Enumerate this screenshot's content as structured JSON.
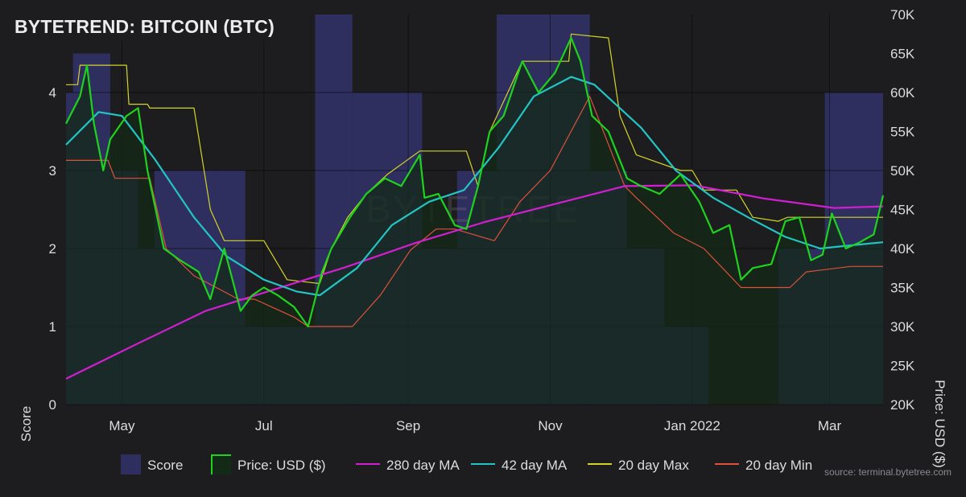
{
  "title": "BYTETREND: BITCOIN (BTC)",
  "watermark": "BYTETREE",
  "source": "source: terminal.bytetree.com",
  "colors": {
    "background": "#1d1d1f",
    "score": "#2e2f5e",
    "price_line": "#1ed21e",
    "price_fill": "#132a17",
    "ma280": "#d21ed2",
    "ma42": "#22c4c4",
    "max20": "#d4d428",
    "min20": "#e0503c"
  },
  "chart_data": {
    "type": "line",
    "title": "BYTETREND: BITCOIN (BTC)",
    "x_axis": {
      "ticks": [
        "May",
        "Jul",
        "Sep",
        "Nov",
        "Jan 2022",
        "Mar"
      ],
      "range": [
        "2021-04-07",
        "2022-03-24"
      ]
    },
    "y_left": {
      "label": "Score",
      "range": [
        0,
        5
      ],
      "ticks": [
        "0",
        "1",
        "2",
        "3",
        "4"
      ]
    },
    "y_right": {
      "label": "Price: USD ($)",
      "range": [
        20000,
        70000
      ],
      "ticks": [
        "20K",
        "25K",
        "30K",
        "35K",
        "40K",
        "45K",
        "50K",
        "55K",
        "60K",
        "65K",
        "70K"
      ]
    },
    "grid": true,
    "legend_position": "bottom",
    "legend": [
      "Score",
      "Price: USD ($)",
      "280 day MA",
      "42 day MA",
      "20 day Max",
      "20 day Min"
    ],
    "score_series": {
      "name": "Score",
      "segments": [
        {
          "start": "2021-04-07",
          "end": "2021-04-10",
          "value": 4
        },
        {
          "start": "2021-04-10",
          "end": "2021-04-26",
          "value": 4.5
        },
        {
          "start": "2021-04-26",
          "end": "2021-05-08",
          "value": 3
        },
        {
          "start": "2021-05-08",
          "end": "2021-05-15",
          "value": 2
        },
        {
          "start": "2021-05-15",
          "end": "2021-06-10",
          "value": 3
        },
        {
          "start": "2021-06-10",
          "end": "2021-06-23",
          "value": 3
        },
        {
          "start": "2021-06-23",
          "end": "2021-07-05",
          "value": 1
        },
        {
          "start": "2021-07-05",
          "end": "2021-07-23",
          "value": 1
        },
        {
          "start": "2021-07-23",
          "end": "2021-08-08",
          "value": 5
        },
        {
          "start": "2021-08-08",
          "end": "2021-09-07",
          "value": 4
        },
        {
          "start": "2021-09-07",
          "end": "2021-09-22",
          "value": 2
        },
        {
          "start": "2021-09-22",
          "end": "2021-10-09",
          "value": 3
        },
        {
          "start": "2021-10-09",
          "end": "2021-11-18",
          "value": 5
        },
        {
          "start": "2021-11-18",
          "end": "2021-12-04",
          "value": 3
        },
        {
          "start": "2021-12-04",
          "end": "2021-12-20",
          "value": 2
        },
        {
          "start": "2021-12-20",
          "end": "2022-01-08",
          "value": 1
        },
        {
          "start": "2022-01-08",
          "end": "2022-02-07",
          "value": 0
        },
        {
          "start": "2022-02-07",
          "end": "2022-02-27",
          "value": 2
        },
        {
          "start": "2022-02-27",
          "end": "2022-03-24",
          "value": 4
        }
      ]
    },
    "series": [
      {
        "name": "Price: USD ($)",
        "dates": [
          "2021-04-07",
          "2021-04-13",
          "2021-04-16",
          "2021-04-19",
          "2021-04-23",
          "2021-04-26",
          "2021-05-03",
          "2021-05-08",
          "2021-05-12",
          "2021-05-19",
          "2021-05-26",
          "2021-06-03",
          "2021-06-08",
          "2021-06-14",
          "2021-06-21",
          "2021-06-26",
          "2021-07-01",
          "2021-07-07",
          "2021-07-14",
          "2021-07-20",
          "2021-07-26",
          "2021-07-30",
          "2021-08-07",
          "2021-08-14",
          "2021-08-22",
          "2021-08-29",
          "2021-09-06",
          "2021-09-08",
          "2021-09-14",
          "2021-09-21",
          "2021-09-26",
          "2021-10-01",
          "2021-10-06",
          "2021-10-12",
          "2021-10-20",
          "2021-10-27",
          "2021-11-03",
          "2021-11-10",
          "2021-11-14",
          "2021-11-19",
          "2021-11-26",
          "2021-12-04",
          "2021-12-10",
          "2021-12-18",
          "2021-12-27",
          "2022-01-04",
          "2022-01-10",
          "2022-01-17",
          "2022-01-22",
          "2022-01-27",
          "2022-02-04",
          "2022-02-10",
          "2022-02-16",
          "2022-02-21",
          "2022-02-26",
          "2022-03-02",
          "2022-03-08",
          "2022-03-14",
          "2022-03-20",
          "2022-03-24"
        ],
        "values": [
          56000,
          59500,
          63500,
          56000,
          50000,
          54000,
          57000,
          58000,
          50000,
          40000,
          38500,
          37000,
          33500,
          40000,
          32000,
          34000,
          35000,
          34000,
          32500,
          30000,
          37000,
          40000,
          44000,
          47000,
          49000,
          48000,
          52000,
          46500,
          47000,
          43000,
          42500,
          48000,
          55000,
          57000,
          64000,
          60000,
          62500,
          67000,
          64000,
          57000,
          55000,
          49000,
          48000,
          47000,
          49500,
          46000,
          42000,
          43000,
          36000,
          37500,
          38000,
          43500,
          44000,
          38500,
          39200,
          44500,
          40000,
          40800,
          41800,
          46800
        ]
      },
      {
        "name": "280 day MA",
        "dates": [
          "2021-04-07",
          "2021-05-07",
          "2021-06-06",
          "2021-07-06",
          "2021-08-05",
          "2021-09-04",
          "2021-10-04",
          "2021-11-03",
          "2021-12-03",
          "2022-01-02",
          "2022-02-01",
          "2022-03-03",
          "2022-03-24"
        ],
        "values": [
          23300,
          27700,
          32000,
          34800,
          37600,
          40700,
          43400,
          45700,
          48000,
          48100,
          46400,
          45200,
          45400
        ]
      },
      {
        "name": "42 day MA",
        "dates": [
          "2021-04-07",
          "2021-04-21",
          "2021-05-01",
          "2021-05-15",
          "2021-06-01",
          "2021-06-15",
          "2021-07-01",
          "2021-07-15",
          "2021-07-25",
          "2021-08-10",
          "2021-08-25",
          "2021-09-10",
          "2021-09-25",
          "2021-10-10",
          "2021-10-25",
          "2021-11-10",
          "2021-11-20",
          "2021-12-10",
          "2021-12-25",
          "2022-01-10",
          "2022-01-25",
          "2022-02-10",
          "2022-02-25",
          "2022-03-10",
          "2022-03-24"
        ],
        "values": [
          53300,
          57500,
          57000,
          51500,
          44000,
          39000,
          36000,
          34500,
          34000,
          37500,
          43000,
          46000,
          47500,
          53000,
          59500,
          62000,
          61000,
          55500,
          50000,
          46500,
          44000,
          41500,
          40000,
          40400,
          40800
        ]
      },
      {
        "name": "20 day Max",
        "dates": [
          "2021-04-07",
          "2021-04-12",
          "2021-04-13",
          "2021-05-03",
          "2021-05-04",
          "2021-05-12",
          "2021-05-13",
          "2021-06-01",
          "2021-06-08",
          "2021-06-14",
          "2021-07-01",
          "2021-07-11",
          "2021-07-25",
          "2021-07-30",
          "2021-08-06",
          "2021-08-14",
          "2021-08-23",
          "2021-09-06",
          "2021-09-26",
          "2021-10-01",
          "2021-10-06",
          "2021-10-20",
          "2021-11-09",
          "2021-11-10",
          "2021-11-26",
          "2021-12-01",
          "2021-12-08",
          "2021-12-27",
          "2022-01-01",
          "2022-01-06",
          "2022-01-20",
          "2022-01-27",
          "2022-02-07",
          "2022-02-11",
          "2022-03-24"
        ],
        "values": [
          61000,
          61000,
          63500,
          63500,
          58500,
          58500,
          58000,
          58000,
          45000,
          41000,
          41000,
          36000,
          35500,
          40000,
          44000,
          47000,
          49500,
          52500,
          52500,
          48000,
          55000,
          64000,
          64000,
          67500,
          67000,
          57000,
          52000,
          50000,
          50000,
          47500,
          47500,
          44000,
          43500,
          44000,
          44000
        ]
      },
      {
        "name": "20 day Min",
        "dates": [
          "2021-04-07",
          "2021-04-25",
          "2021-04-28",
          "2021-05-13",
          "2021-05-20",
          "2021-06-01",
          "2021-06-20",
          "2021-06-27",
          "2021-07-14",
          "2021-07-20",
          "2021-08-08",
          "2021-08-20",
          "2021-09-02",
          "2021-09-13",
          "2021-09-21",
          "2021-10-08",
          "2021-10-19",
          "2021-11-01",
          "2021-11-18",
          "2021-12-03",
          "2021-12-08",
          "2021-12-24",
          "2022-01-06",
          "2022-01-22",
          "2022-02-12",
          "2022-02-19",
          "2022-03-10",
          "2022-03-24"
        ],
        "values": [
          51300,
          51300,
          49000,
          49000,
          40000,
          36500,
          33500,
          33500,
          31200,
          30000,
          30000,
          34000,
          39800,
          42500,
          42500,
          41000,
          46000,
          50000,
          59500,
          48000,
          46500,
          42000,
          40000,
          35000,
          35000,
          37000,
          37700,
          37700
        ]
      }
    ]
  }
}
